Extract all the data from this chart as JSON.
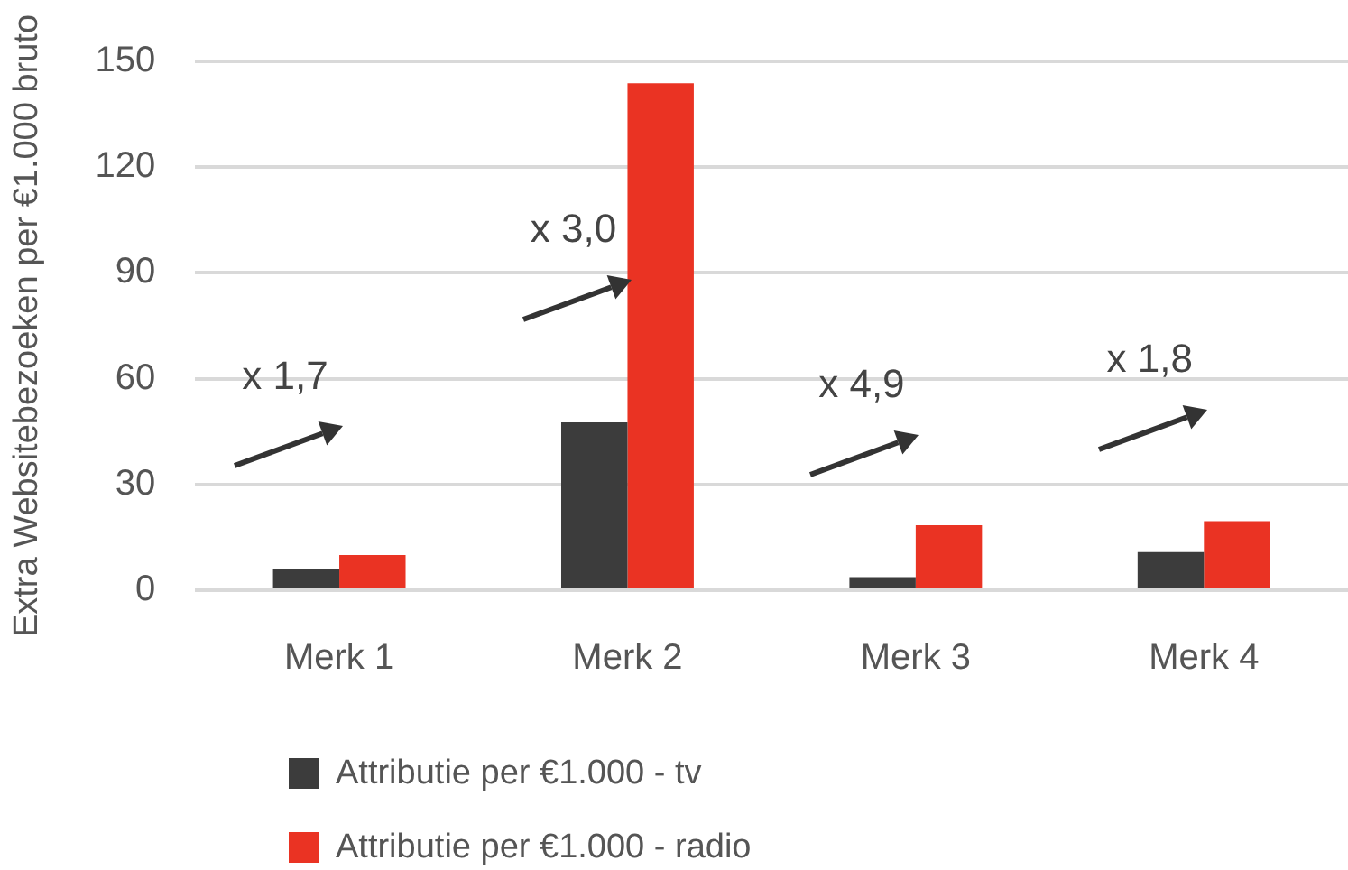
{
  "chart_data": {
    "type": "bar",
    "ylabel": "Extra Websitebezoeken per €1.000 bruto",
    "categories": [
      "Merk 1",
      "Merk 2",
      "Merk 3",
      "Merk 4"
    ],
    "series": [
      {
        "name": "Attributie per €1.000 - tv",
        "color": "#3c3c3c",
        "values": [
          6,
          47.6,
          3.7,
          10.8
        ]
      },
      {
        "name": "Attributie per €1.000 - radio",
        "color": "#ea3323",
        "values": [
          10,
          143.8,
          18.4,
          19.6
        ]
      }
    ],
    "ylim": [
      0,
      150
    ],
    "yticks": [
      0,
      30,
      60,
      90,
      120,
      150
    ],
    "grid": "y",
    "legend": "bottom",
    "annotations": [
      "x 1,7",
      "x 3,0",
      "x 4,9",
      "x 1,8"
    ]
  }
}
